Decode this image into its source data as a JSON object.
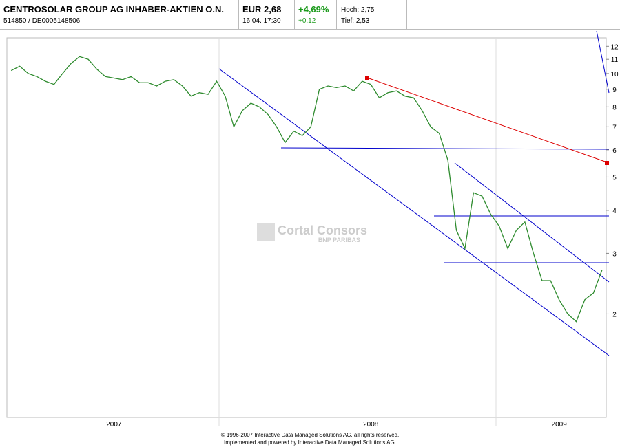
{
  "header": {
    "name": "CENTROSOLAR GROUP AG INHABER-AKTIEN O.N.",
    "id": "514850  /  DE0005148506",
    "price": "EUR 2,68",
    "time": "16.04. 17:30",
    "change_pct": "+4,69%",
    "change": "+0,12",
    "high": "Hoch: 2,75",
    "low": "Tief: 2,53"
  },
  "chart_data": {
    "type": "line",
    "color": "#2e8b2e",
    "log_scale": true,
    "grid": false,
    "categories": [
      null,
      null,
      null,
      null,
      null,
      null,
      null,
      null,
      null,
      null,
      null,
      null,
      "2007",
      null,
      null,
      null,
      null,
      null,
      null,
      null,
      null,
      null,
      null,
      null,
      null,
      null,
      null,
      null,
      null,
      null,
      null,
      null,
      null,
      null,
      null,
      null,
      null,
      null,
      null,
      null,
      null,
      null,
      "2008",
      null,
      null,
      null,
      null,
      null,
      null,
      null,
      null,
      null,
      null,
      null,
      null,
      null,
      null,
      null,
      null,
      null,
      null,
      null,
      null,
      null,
      "2009",
      null,
      null,
      null,
      null,
      null
    ],
    "values": [
      10.2,
      10.5,
      10,
      9.8,
      9.5,
      9.3,
      10,
      10.7,
      11.2,
      11,
      10.3,
      9.8,
      9.7,
      9.6,
      9.8,
      9.4,
      9.4,
      9.2,
      9.5,
      9.6,
      9.2,
      8.6,
      8.8,
      8.7,
      9.5,
      8.6,
      7,
      7.8,
      8.2,
      8,
      7.6,
      7,
      6.3,
      6.8,
      6.6,
      7,
      9,
      9.2,
      9.1,
      9.2,
      8.9,
      9.5,
      9.3,
      8.5,
      8.8,
      8.9,
      8.6,
      8.5,
      7.8,
      7,
      6.7,
      5.6,
      3.5,
      3.1,
      4.5,
      4.4,
      3.9,
      3.6,
      3.1,
      3.5,
      3.7,
      3,
      2.5,
      2.5,
      2.2,
      2,
      1.9,
      2.2,
      2.3,
      2.68
    ],
    "ylim": [
      1,
      12.7
    ],
    "yticks": [
      2,
      3,
      4,
      5,
      6,
      7,
      8,
      9,
      10,
      11,
      12
    ]
  },
  "watermark": {
    "brand": "Cortal Consors",
    "sub": "BNP PARIBAS"
  },
  "footer": {
    "copyright": "© 1996-2007 Interactive Data Managed Solutions AG, all rights reserved.",
    "credit": "Implemented and powered by Interactive Data Managed Solutions AG."
  }
}
